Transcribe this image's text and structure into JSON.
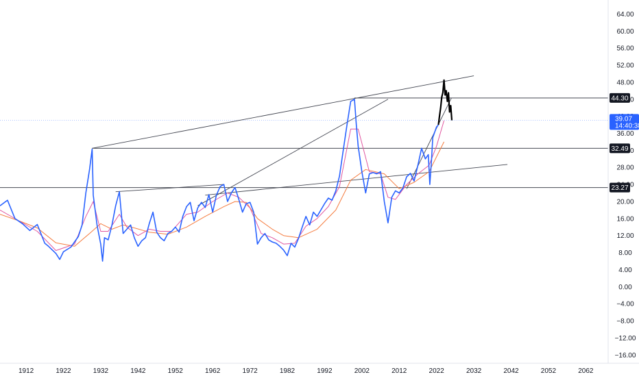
{
  "chart_data": {
    "type": "line",
    "title": "",
    "xlabel": "",
    "ylabel": "",
    "xlim": [
      1905,
      2068
    ],
    "ylim": [
      -17,
      66
    ],
    "grid": false,
    "x_ticks": [
      "1912",
      "1922",
      "1932",
      "1942",
      "1952",
      "1962",
      "1972",
      "1982",
      "1992",
      "2002",
      "2012",
      "2022",
      "2032",
      "2042",
      "2052",
      "2062"
    ],
    "y_ticks": [
      "64.00",
      "60.00",
      "56.00",
      "52.00",
      "48.00",
      "44.00",
      "40.00",
      "36.00",
      "32.00",
      "28.00",
      "24.00",
      "20.00",
      "16.00",
      "12.00",
      "8.00",
      "4.00",
      "0.00",
      "−4.00",
      "−8.00",
      "−12.00",
      "−16.00"
    ],
    "price_labels": [
      {
        "text": "44.30",
        "value": 44.3
      },
      {
        "text": "32.49",
        "value": 32.49
      },
      {
        "text": "23.27",
        "value": 23.27
      }
    ],
    "last_price": {
      "text": "39.07",
      "countdown": "14:40:38",
      "value": 39.07
    },
    "horizontal_levels": [
      {
        "y": 44.3,
        "x_start": 2000,
        "x_end": 2068
      },
      {
        "y": 32.49,
        "x_start": 1929.7,
        "x_end": 2068
      },
      {
        "y": 23.27,
        "x_start": 1905,
        "x_end": 2068
      }
    ],
    "trendlines": [
      {
        "from": [
          1929.7,
          32.49
        ],
        "to": [
          2032,
          49.5
        ]
      },
      {
        "from": [
          1936,
          22.3
        ],
        "to": [
          1965,
          24.0
        ]
      },
      {
        "from": [
          1958,
          19.0
        ],
        "to": [
          2009,
          44.0
        ]
      },
      {
        "from": [
          1960,
          21.5
        ],
        "to": [
          2041,
          28.7
        ]
      },
      {
        "from": [
          2014,
          23.0
        ],
        "to": [
          2026,
          44.3
        ]
      }
    ],
    "series": [
      {
        "color": "#2962ff",
        "points": [
          [
            1905,
            19
          ],
          [
            1907,
            20.3
          ],
          [
            1909,
            16
          ],
          [
            1911,
            14.8
          ],
          [
            1913,
            13.2
          ],
          [
            1915,
            14.6
          ],
          [
            1917,
            10.2
          ],
          [
            1918,
            9.5
          ],
          [
            1920,
            7.8
          ],
          [
            1921,
            6.4
          ],
          [
            1922,
            8.2
          ],
          [
            1924,
            9.3
          ],
          [
            1926,
            11.8
          ],
          [
            1927,
            14.5
          ],
          [
            1928,
            22
          ],
          [
            1929,
            27.5
          ],
          [
            1929.7,
            32.3
          ],
          [
            1930,
            21.5
          ],
          [
            1931,
            14.5
          ],
          [
            1932,
            10
          ],
          [
            1932.5,
            6
          ],
          [
            1933,
            11.5
          ],
          [
            1934,
            11
          ],
          [
            1935,
            14.5
          ],
          [
            1936,
            19
          ],
          [
            1937,
            22.3
          ],
          [
            1938,
            12.5
          ],
          [
            1939,
            13.5
          ],
          [
            1940,
            14.5
          ],
          [
            1941,
            11.5
          ],
          [
            1942,
            9.5
          ],
          [
            1943,
            10.8
          ],
          [
            1944,
            11.5
          ],
          [
            1945,
            14.8
          ],
          [
            1946,
            17.5
          ],
          [
            1947,
            12.8
          ],
          [
            1948,
            11.5
          ],
          [
            1949,
            10.8
          ],
          [
            1950,
            12.5
          ],
          [
            1951,
            13
          ],
          [
            1952,
            14
          ],
          [
            1953,
            12.8
          ],
          [
            1954,
            16.5
          ],
          [
            1955,
            18.8
          ],
          [
            1956,
            19.8
          ],
          [
            1957,
            15.5
          ],
          [
            1958,
            18.5
          ],
          [
            1959,
            19.8
          ],
          [
            1960,
            18.6
          ],
          [
            1961,
            21.6
          ],
          [
            1962,
            17.5
          ],
          [
            1963,
            21.5
          ],
          [
            1964,
            23.5
          ],
          [
            1965,
            24
          ],
          [
            1966,
            20
          ],
          [
            1967,
            22
          ],
          [
            1968,
            23.3
          ],
          [
            1969,
            20.5
          ],
          [
            1970,
            17.5
          ],
          [
            1971,
            19.5
          ],
          [
            1972,
            19.8
          ],
          [
            1973,
            17.5
          ],
          [
            1974,
            10
          ],
          [
            1975,
            11.5
          ],
          [
            1976,
            12.5
          ],
          [
            1977,
            11
          ],
          [
            1978,
            10.5
          ],
          [
            1979,
            10.2
          ],
          [
            1980,
            9.5
          ],
          [
            1981,
            8.6
          ],
          [
            1982,
            7.3
          ],
          [
            1983,
            10.2
          ],
          [
            1984,
            9.3
          ],
          [
            1985,
            11.3
          ],
          [
            1986,
            14
          ],
          [
            1987,
            16.5
          ],
          [
            1988,
            14.5
          ],
          [
            1989,
            17.5
          ],
          [
            1990,
            16.5
          ],
          [
            1991,
            18
          ],
          [
            1992,
            19.5
          ],
          [
            1993,
            20.8
          ],
          [
            1994,
            20.3
          ],
          [
            1995,
            22.5
          ],
          [
            1996,
            26
          ],
          [
            1997,
            32
          ],
          [
            1998,
            38
          ],
          [
            1999,
            43.5
          ],
          [
            2000,
            44
          ],
          [
            2000.5,
            38
          ],
          [
            2001,
            33
          ],
          [
            2002,
            27
          ],
          [
            2003,
            22
          ],
          [
            2004,
            26.5
          ],
          [
            2005,
            26.8
          ],
          [
            2006,
            26.5
          ],
          [
            2007,
            27
          ],
          [
            2008,
            20
          ],
          [
            2009,
            15
          ],
          [
            2010,
            21
          ],
          [
            2011,
            22.5
          ],
          [
            2012,
            22
          ],
          [
            2013,
            23.2
          ],
          [
            2014,
            25.8
          ],
          [
            2015,
            26.6
          ],
          [
            2016,
            24.8
          ],
          [
            2017,
            28.5
          ],
          [
            2018,
            32.5
          ],
          [
            2019,
            30
          ],
          [
            2019.8,
            31
          ],
          [
            2020.2,
            24
          ],
          [
            2020.6,
            29
          ],
          [
            2021,
            35
          ],
          [
            2022,
            37.5
          ],
          [
            2022.5,
            38
          ]
        ]
      },
      {
        "color": "#000000",
        "points": [
          [
            2022.5,
            38
          ],
          [
            2022.8,
            40
          ],
          [
            2023.1,
            42
          ],
          [
            2023.4,
            44.5
          ],
          [
            2023.7,
            45.5
          ],
          [
            2024,
            48.5
          ],
          [
            2024.3,
            45
          ],
          [
            2024.6,
            46
          ],
          [
            2024.9,
            43.5
          ],
          [
            2025.2,
            45.5
          ],
          [
            2025.5,
            41
          ],
          [
            2025.8,
            42.5
          ],
          [
            2026.1,
            39.07
          ]
        ]
      },
      {
        "color": "#e0569f",
        "points": [
          [
            1905,
            18
          ],
          [
            1910,
            15.5
          ],
          [
            1915,
            13
          ],
          [
            1920,
            8.5
          ],
          [
            1925,
            10
          ],
          [
            1928,
            16.5
          ],
          [
            1930,
            20
          ],
          [
            1932,
            13
          ],
          [
            1934,
            13
          ],
          [
            1937,
            17
          ],
          [
            1939,
            14
          ],
          [
            1942,
            12
          ],
          [
            1945,
            13.5
          ],
          [
            1948,
            13
          ],
          [
            1951,
            13
          ],
          [
            1955,
            17
          ],
          [
            1958,
            17.5
          ],
          [
            1962,
            20
          ],
          [
            1966,
            22
          ],
          [
            1969,
            21
          ],
          [
            1972,
            18.5
          ],
          [
            1975,
            12.5
          ],
          [
            1978,
            11.5
          ],
          [
            1981,
            10
          ],
          [
            1984,
            10.2
          ],
          [
            1987,
            14.2
          ],
          [
            1990,
            16
          ],
          [
            1993,
            18.8
          ],
          [
            1996,
            23.5
          ],
          [
            1999,
            37
          ],
          [
            2001,
            37
          ],
          [
            2004,
            27
          ],
          [
            2007,
            26.5
          ],
          [
            2009,
            21
          ],
          [
            2011,
            20.5
          ],
          [
            2014,
            24
          ],
          [
            2017,
            26.5
          ],
          [
            2020,
            28.5
          ],
          [
            2022,
            33
          ],
          [
            2024,
            39
          ]
        ]
      },
      {
        "color": "#f57c3f",
        "points": [
          [
            1905,
            17
          ],
          [
            1910,
            15.5
          ],
          [
            1915,
            13.8
          ],
          [
            1920,
            10.3
          ],
          [
            1925,
            9.5
          ],
          [
            1929,
            12.5
          ],
          [
            1932,
            14.8
          ],
          [
            1935,
            13.5
          ],
          [
            1938,
            14.5
          ],
          [
            1941,
            13.8
          ],
          [
            1945,
            12.8
          ],
          [
            1950,
            12.3
          ],
          [
            1955,
            14
          ],
          [
            1960,
            16.5
          ],
          [
            1965,
            18.8
          ],
          [
            1968,
            20
          ],
          [
            1971,
            19.8
          ],
          [
            1974,
            16
          ],
          [
            1978,
            13.5
          ],
          [
            1981,
            12
          ],
          [
            1985,
            11.5
          ],
          [
            1990,
            13.5
          ],
          [
            1995,
            18
          ],
          [
            1999,
            25
          ],
          [
            2003,
            27.5
          ],
          [
            2008,
            26.5
          ],
          [
            2012,
            23
          ],
          [
            2016,
            24.5
          ],
          [
            2020,
            27
          ],
          [
            2024,
            34
          ]
        ]
      }
    ]
  }
}
